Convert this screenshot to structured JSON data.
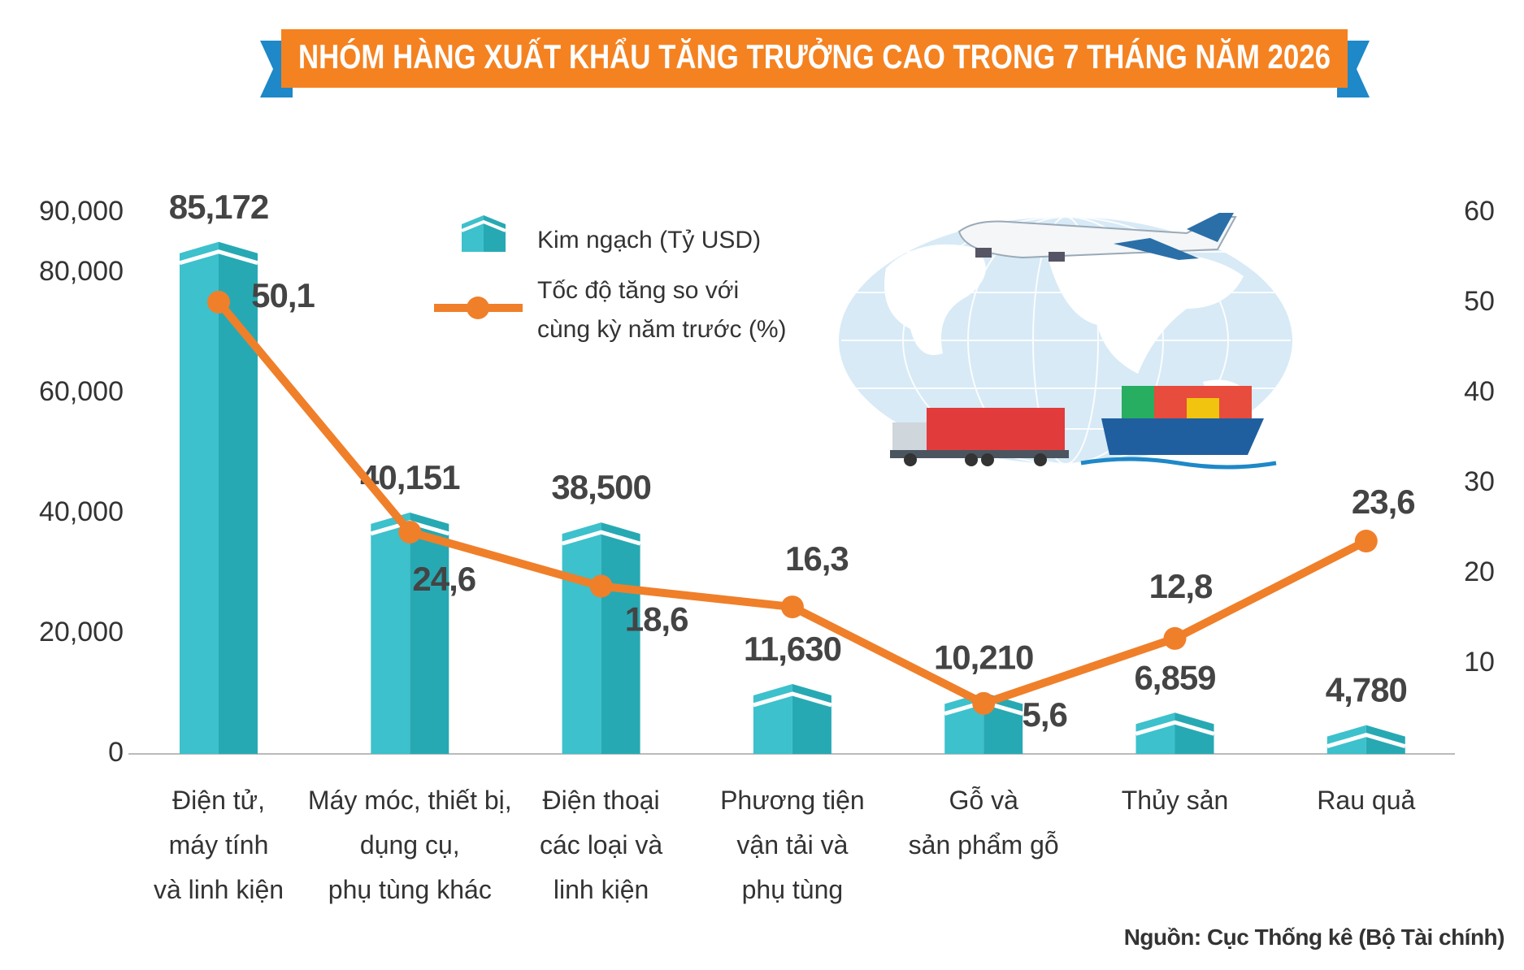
{
  "chart_data": {
    "type": "combo",
    "title": "NHÓM HÀNG XUẤT KHẨU TĂNG TRƯỞNG CAO TRONG 7 THÁNG NĂM 2026",
    "source": "Nguồn: Cục Thống kê (Bộ Tài chính)",
    "categories": [
      "Điện tử,\nmáy tính\nvà linh kiện",
      "Máy móc, thiết bị,\ndụng cụ,\nphụ tùng khác",
      "Điện thoại\ncác loại và\nlinh kiện",
      "Phương tiện\nvận tải và\nphụ tùng",
      "Gỗ và\nsản phẩm gỗ",
      "Thủy sản",
      "Rau quả"
    ],
    "series": [
      {
        "name": "Kim ngạch (Tỷ USD)",
        "type": "bar",
        "color": "#3dc1cc",
        "values": [
          85172,
          40151,
          38500,
          11630,
          10210,
          6859,
          4780
        ],
        "value_labels": [
          "85,172",
          "40,151",
          "38,500",
          "11,630",
          "10,210",
          "6,859",
          "4,780"
        ]
      },
      {
        "name": "Tốc độ tăng so với\ncùng kỳ năm trước (%)",
        "type": "line",
        "axis": "y2",
        "color": "#f07f2a",
        "values": [
          50.1,
          24.6,
          18.6,
          16.3,
          5.6,
          12.8,
          23.6
        ],
        "value_labels": [
          "50,1",
          "24,6",
          "18,6",
          "16,3",
          "5,6",
          "12,8",
          "23,6"
        ]
      }
    ],
    "ylim": [
      0,
      90000
    ],
    "yticks": [
      0,
      {
        "value": 20000,
        "label": "20,000"
      },
      {
        "value": 40000,
        "label": "40,000"
      },
      {
        "value": 60000,
        "label": "60,000"
      },
      {
        "value": 80000,
        "label": "80,000"
      },
      {
        "value": 90000,
        "label": "90,000"
      }
    ],
    "y2lim": [
      0,
      60
    ],
    "y2ticks": [
      10,
      20,
      30,
      40,
      50,
      60
    ],
    "grid": false
  }
}
